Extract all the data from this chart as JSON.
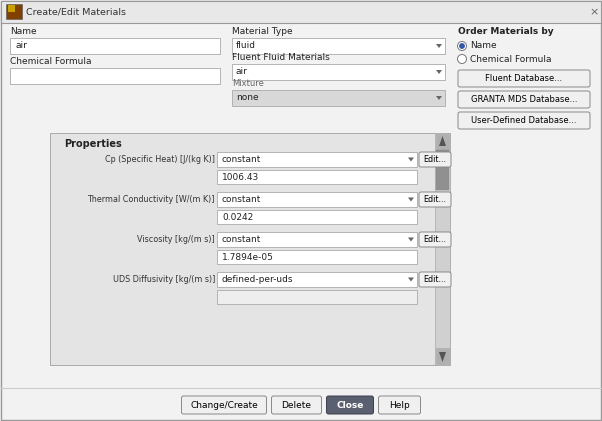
{
  "title": "Create/Edit Materials",
  "bg_outer": "#f2f2f2",
  "dialog_bg": "#f2f2f2",
  "titlebar_bg": "#e8e8e8",
  "white": "#ffffff",
  "input_bg": "#ffffff",
  "props_bg": "#e4e4e4",
  "dropdown_bg": "#ffffff",
  "dropdown_dis_bg": "#d8d8d8",
  "scrollbar_bg": "#c8c8c8",
  "scrollbar_thumb": "#909090",
  "border_light": "#cccccc",
  "border_med": "#aaaaaa",
  "border_dark": "#888888",
  "text_dark": "#1a1a2e",
  "text_label": "#222222",
  "text_gray": "#666666",
  "btn_bg": "#f0f0f0",
  "btn_close_bg": "#5a6070",
  "btn_close_text": "#ffffff",
  "icon_bg1": "#c8a000",
  "icon_bg2": "#804000",
  "label_name": "Name",
  "field_name": "air",
  "label_chem": "Chemical Formula",
  "label_mat_type": "Material Type",
  "dropdown_fluid": "fluid",
  "label_fluent_fluid": "Fluent Fluid Materials",
  "dropdown_air": "air",
  "label_mixture": "Mixture",
  "dropdown_none": "none",
  "label_order": "Order Materials by",
  "radio1": "Name",
  "radio2": "Chemical Formula",
  "btn_fluent_db": "Fluent Database...",
  "btn_granta": "GRANTA MDS Database...",
  "btn_user_db": "User-Defined Database...",
  "label_properties": "Properties",
  "prop_rows": [
    {
      "label": "Cp (Specific Heat) [J/(kg K)]",
      "dropdown": "constant",
      "value": "1006.43"
    },
    {
      "label": "Thermal Conductivity [W/(m K)]",
      "dropdown": "constant",
      "value": "0.0242"
    },
    {
      "label": "Viscosity [kg/(m s)]",
      "dropdown": "constant",
      "value": "1.7894e-05"
    },
    {
      "label": "UDS Diffusivity [kg/(m s)]",
      "dropdown": "defined-per-uds",
      "value": ""
    }
  ],
  "btn_change": "Change/Create",
  "btn_delete": "Delete",
  "btn_close": "Close",
  "btn_help": "Help",
  "fs": 6.5,
  "fs_title": 6.8,
  "fs_small": 6.0,
  "fs_props_label": 5.8
}
